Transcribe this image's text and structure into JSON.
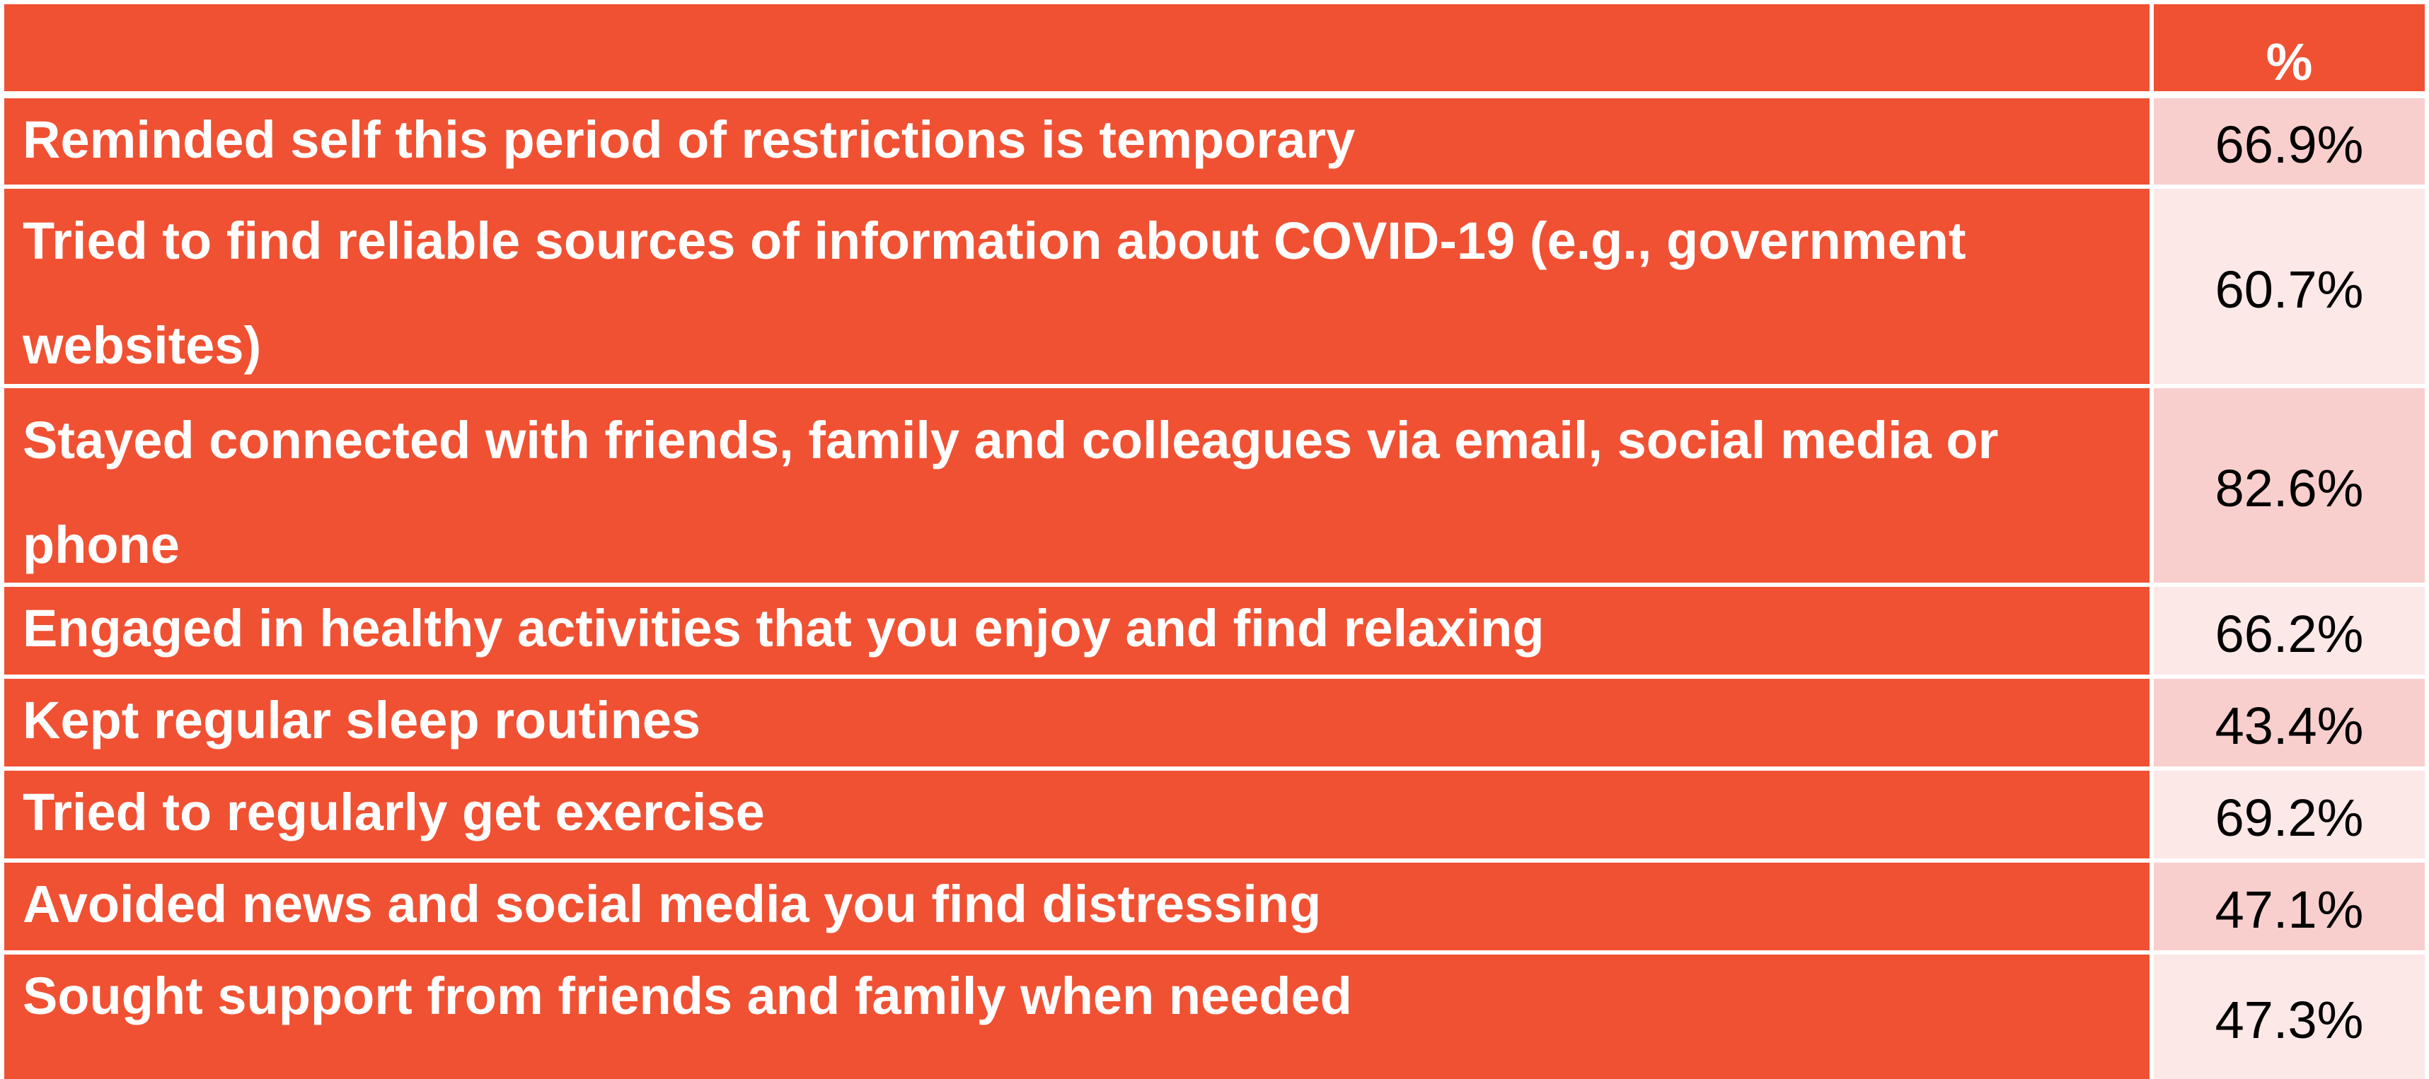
{
  "header": {
    "label": "",
    "value": "%"
  },
  "rows": [
    {
      "label": "Reminded self this period of restrictions is temporary",
      "value": "66.9%"
    },
    {
      "label": "Tried to find reliable sources of information about COVID-19 (e.g., government websites)",
      "value": "60.7%"
    },
    {
      "label": "Stayed connected with friends, family and colleagues via email, social media or phone",
      "value": "82.6%"
    },
    {
      "label": "Engaged in healthy activities that you enjoy and find relaxing",
      "value": "66.2%"
    },
    {
      "label": "Kept regular sleep routines",
      "value": "43.4%"
    },
    {
      "label": "Tried to regularly get exercise",
      "value": "69.2%"
    },
    {
      "label": "Avoided news and social media you find distressing",
      "value": "47.1%"
    },
    {
      "label": "Sought support from friends and family when needed",
      "value": "47.3%"
    }
  ],
  "colors": {
    "label_background": "#f05133",
    "value_tint_a": "#f9cfcd",
    "value_tint_b": "#fce8e7"
  }
}
